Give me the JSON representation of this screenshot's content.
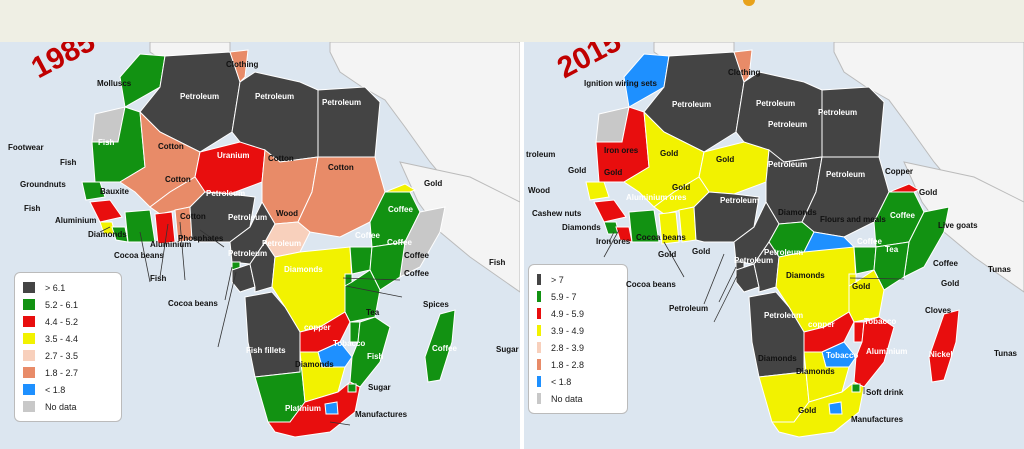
{
  "maps": [
    {
      "year": "1985",
      "legend": [
        {
          "label": "> 6.1",
          "color": "#444444"
        },
        {
          "label": "5.2 - 6.1",
          "color": "#129212"
        },
        {
          "label": "4.4 - 5.2",
          "color": "#e80e0e"
        },
        {
          "label": "3.5 - 4.4",
          "color": "#f2f200"
        },
        {
          "label": "2.7 - 3.5",
          "color": "#f8d0bc"
        },
        {
          "label": "1.8 - 2.7",
          "color": "#e88b68"
        },
        {
          "label": "< 1.8",
          "color": "#1e90ff"
        },
        {
          "label": "No data",
          "color": "#c8c8c8"
        }
      ],
      "labels": [
        "Molluscs",
        "Clothing",
        "Petroleum",
        "Petroleum",
        "Petroleum",
        "Footwear",
        "Fish",
        "Cotton",
        "Uranium",
        "Cotton",
        "Cotton",
        "Groundnuts",
        "Fish",
        "Bauxite",
        "Cotton",
        "Petroleum",
        "Gold",
        "Fish",
        "Aluminium",
        "Diamonds",
        "Cotton",
        "Aluminium",
        "Phosphates",
        "Petroleum",
        "Wood",
        "Coffee",
        "Cocoa beans",
        "Coffee",
        "Coffee",
        "Petroleum",
        "Petroleum",
        "Diamonds",
        "Coffee",
        "Fish",
        "Coffee",
        "Fish",
        "Cocoa beans",
        "Tea",
        "Spices",
        "copper",
        "Tobacco",
        "Coffee",
        "Sugar",
        "Fish fillets",
        "Fish",
        "Diamonds",
        "Sugar",
        "Platinium",
        "Manufactures"
      ]
    },
    {
      "year": "2015",
      "legend": [
        {
          "label": "> 7",
          "color": "#444444"
        },
        {
          "label": "5.9 - 7",
          "color": "#129212"
        },
        {
          "label": "4.9 - 5.9",
          "color": "#e80e0e"
        },
        {
          "label": "3.9 - 4.9",
          "color": "#f2f200"
        },
        {
          "label": "2.8 - 3.9",
          "color": "#f8d0bc"
        },
        {
          "label": "1.8 - 2.8",
          "color": "#e88b68"
        },
        {
          "label": "< 1.8",
          "color": "#1e90ff"
        },
        {
          "label": "No data",
          "color": "#c8c8c8"
        }
      ],
      "labels": [
        "Ignition wiring sets",
        "Clothing",
        "Petroleum",
        "Petroleum",
        "Petroleum",
        "Petroleum",
        "troleum",
        "Iron ores",
        "Gold",
        "Gold",
        "Petroleum",
        "Petroleum",
        "Copper",
        "Gold",
        "Gold",
        "Gold",
        "Gold",
        "Wood",
        "Aluminium ores",
        "Petroleum",
        "Diamonds",
        "Flours and meals",
        "Coffee",
        "Cashew nuts",
        "Live goats",
        "Diamonds",
        "Iron ores",
        "Cocoa beans",
        "Coffee",
        "Tea",
        "Gold",
        "Petroleum",
        "Gold",
        "Petroleum",
        "Diamonds",
        "Coffee",
        "Tunas",
        "Cocoa beans",
        "Gold",
        "Gold",
        "Petroleum",
        "Petroleum",
        "copper",
        "Tobacco",
        "Cloves",
        "Aluminium",
        "Nickel",
        "Tunas",
        "Diamonds",
        "Tobacco",
        "Diamonds",
        "Soft drink",
        "Gold",
        "Manufactures"
      ]
    }
  ]
}
